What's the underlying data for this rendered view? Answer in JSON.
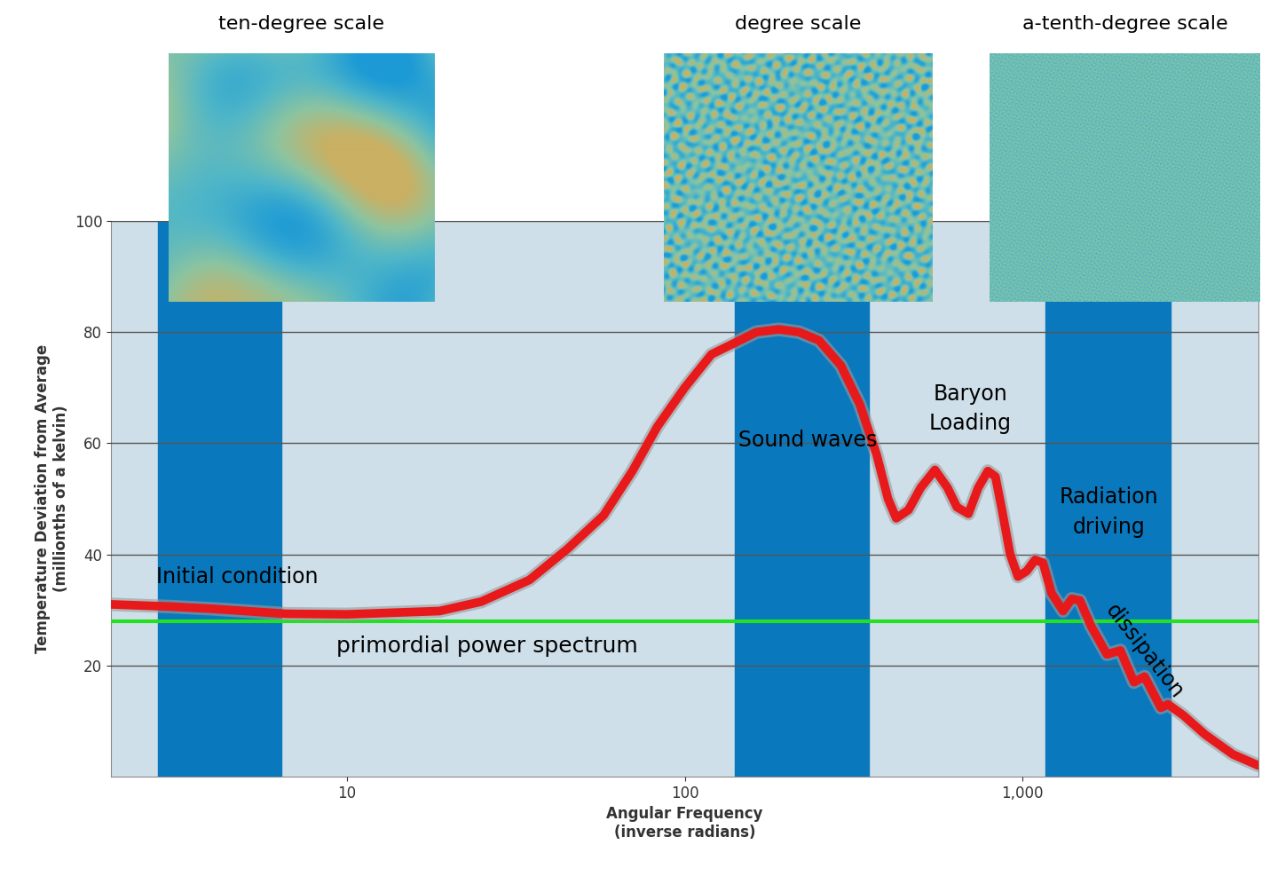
{
  "chart_data": {
    "type": "line",
    "x_label": "Angular Frequency\n(inverse radians)",
    "y_label": "Temperature Deviation from Average\n(millionths of a kelvin)",
    "log": "x",
    "grid": true,
    "xlim": [
      2,
      5000
    ],
    "ylim": [
      0,
      100
    ],
    "xticks": [
      10,
      100,
      {
        "value": 1000,
        "label": "1,000"
      }
    ],
    "yticks": [
      20,
      40,
      60,
      80,
      100
    ],
    "color": "#e8191b",
    "x": [
      2,
      3,
      4,
      5,
      6.6,
      10,
      18.8,
      25,
      34.7,
      45,
      57.5,
      70,
      83,
      100,
      120,
      140,
      163,
      190,
      218,
      250,
      290,
      330,
      370,
      400,
      423,
      460,
      500,
      551,
      600,
      640,
      692,
      740,
      790,
      832,
      870,
      920,
      970,
      1030,
      1090,
      1150,
      1220,
      1320,
      1400,
      1480,
      1600,
      1780,
      1950,
      2140,
      2300,
      2570,
      2700,
      3000,
      3470,
      4200,
      5000
    ],
    "values": [
      31,
      30.6,
      30.2,
      29.8,
      29.3,
      29.2,
      29.8,
      31.5,
      35.4,
      41,
      47,
      55,
      63,
      70,
      76,
      78,
      80,
      80.5,
      80,
      78.5,
      74,
      67,
      58,
      50,
      46.5,
      48,
      52,
      55.2,
      52,
      48.5,
      47.3,
      52,
      55,
      54,
      48,
      40,
      36,
      37,
      39,
      38.5,
      33,
      29.8,
      32,
      31.7,
      27,
      22,
      22.7,
      17,
      18,
      12.4,
      13,
      11,
      7.6,
      4,
      2
    ],
    "bands": [
      {
        "label": "ten-degree scale",
        "range": [
          2.75,
          6.4
        ],
        "color": "#0a78bd"
      },
      {
        "label": "degree scale",
        "range": [
          141,
          352
        ],
        "color": "#0a78bd"
      },
      {
        "label": "a-tenth-degree scale",
        "range": [
          1170,
          2750
        ],
        "color": "#0a78bd"
      }
    ],
    "reference_line": {
      "label": "primordial power spectrum",
      "value": 28,
      "color": "#22e022"
    },
    "annotations": [
      "Initial condition",
      "Sound waves",
      "Baryon\nLoading",
      "Radiation\ndriving",
      "dissipation"
    ]
  }
}
